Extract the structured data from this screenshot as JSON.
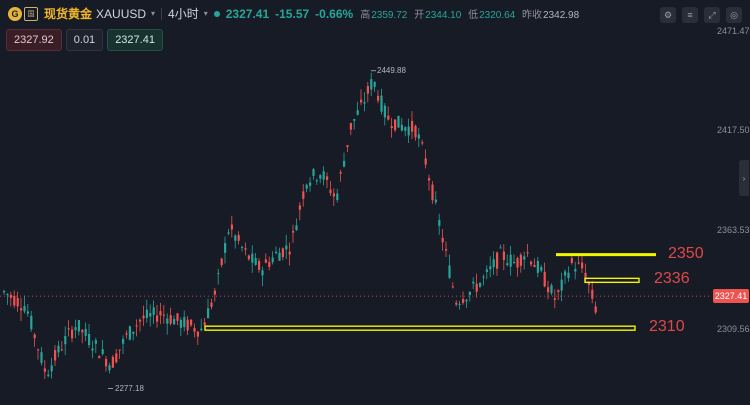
{
  "header": {
    "logo_glyph": "G",
    "flag_glyph": "国",
    "symbol_cn": "现货黄金",
    "symbol_en": "XAUUSD",
    "caret": "▾",
    "timeframe": "4小时",
    "timeframe_caret": "▾",
    "last_price": "2327.41",
    "change": "-15.57",
    "change_pct": "-0.66%",
    "high_label": "高",
    "high": "2359.72",
    "open_label": "开",
    "open": "2344.10",
    "low_label": "低",
    "low": "2320.64",
    "prev_label": "昨收",
    "prev_close": "2342.98",
    "status_color": "#26a69a"
  },
  "toolbar": {
    "buttons": [
      {
        "name": "settings-icon",
        "glyph": "⚙"
      },
      {
        "name": "sliders-icon",
        "glyph": "≡"
      },
      {
        "name": "expand-icon",
        "glyph": "⤢"
      },
      {
        "name": "camera-icon",
        "glyph": "◎"
      }
    ]
  },
  "trade": {
    "sell_price": "2327.92",
    "quantity": "0.01",
    "buy_price": "2327.41"
  },
  "axis": {
    "ticks": [
      {
        "label": "2471.47",
        "value": 2471.47
      },
      {
        "label": "2417.50",
        "value": 2417.5
      },
      {
        "label": "2363.53",
        "value": 2363.53
      },
      {
        "label": "2309.56",
        "value": 2309.56
      }
    ],
    "current_label": "2327.41",
    "current_value": 2327.41,
    "current_color": "#ef5350"
  },
  "annotations": {
    "high_marker": "2449.88",
    "high_value": 2449.88,
    "low_marker": "2277.18",
    "low_value": 2277.18
  },
  "levels": [
    {
      "label": "2350",
      "value": 2350,
      "style": "line"
    },
    {
      "label": "2336",
      "value": 2336,
      "style": "box"
    },
    {
      "label": "2310",
      "value": 2310,
      "style": "box"
    }
  ],
  "colors": {
    "up": "#26a69a",
    "down": "#ef5350",
    "highlight": "#f5f500",
    "level_text": "#e04848"
  },
  "scroll_tab_glyph": "›"
}
